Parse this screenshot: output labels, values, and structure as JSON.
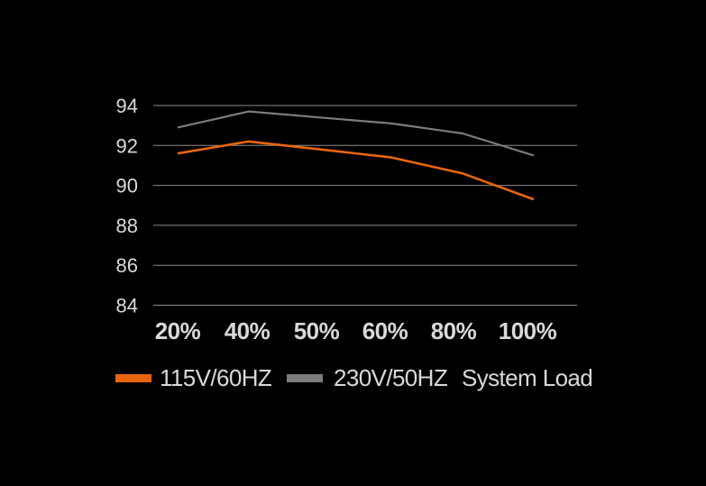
{
  "window": {
    "background": "#000000"
  },
  "chart_data": {
    "type": "line",
    "title": "",
    "categories": [
      "20%",
      "40%",
      "50%",
      "60%",
      "80%",
      "100%"
    ],
    "series": [
      {
        "name": "115V/60HZ",
        "color": "#e8650e",
        "values": [
          91.6,
          92.2,
          91.8,
          91.4,
          90.6,
          89.3
        ]
      },
      {
        "name": "230V/50HZ",
        "color": "#7c7c7c",
        "values": [
          92.9,
          93.7,
          93.4,
          93.1,
          92.6,
          91.5
        ]
      }
    ],
    "xlabel": "System Load",
    "ylabel": "",
    "yticks": [
      94,
      92,
      90,
      88,
      86,
      84
    ],
    "ylim": [
      84,
      94
    ],
    "grid": true,
    "legend_position": "bottom-left",
    "colors": {
      "background": "#000000",
      "gridline": "#8c8c8c",
      "text": "#d9d9d9"
    }
  }
}
